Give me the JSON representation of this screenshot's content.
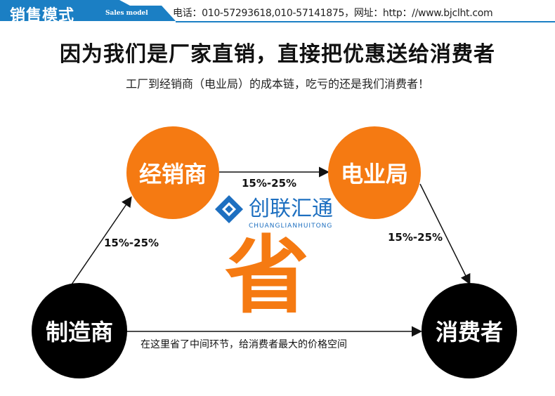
{
  "header": {
    "title": "销售模式",
    "subtitle": "Sales model",
    "contact": "电话：010-57293618,010-57141875，网址：http：//www.bjclht.com",
    "color": "#1b7fc4"
  },
  "headline": "因为我们是厂家直销，直接把优惠送给消费者",
  "tagline": "工厂到经销商（电业局）的成本链，吃亏的还是我们消费者！",
  "nodes": {
    "dealer": "经销商",
    "bureau": "电业局",
    "maker": "制造商",
    "consumer": "消费者"
  },
  "edges": {
    "maker_dealer": "15%-25%",
    "dealer_bureau": "15%-25%",
    "bureau_consumer": "15%-25%",
    "maker_consumer": "在这里省了中间环节，给消费者最大的价格空间"
  },
  "center_char": "省",
  "logo": {
    "name": "创联汇通",
    "pinyin": "CHUANGLIANHUITONG",
    "color": "#1d6fc0"
  },
  "accent": "#f57a12"
}
